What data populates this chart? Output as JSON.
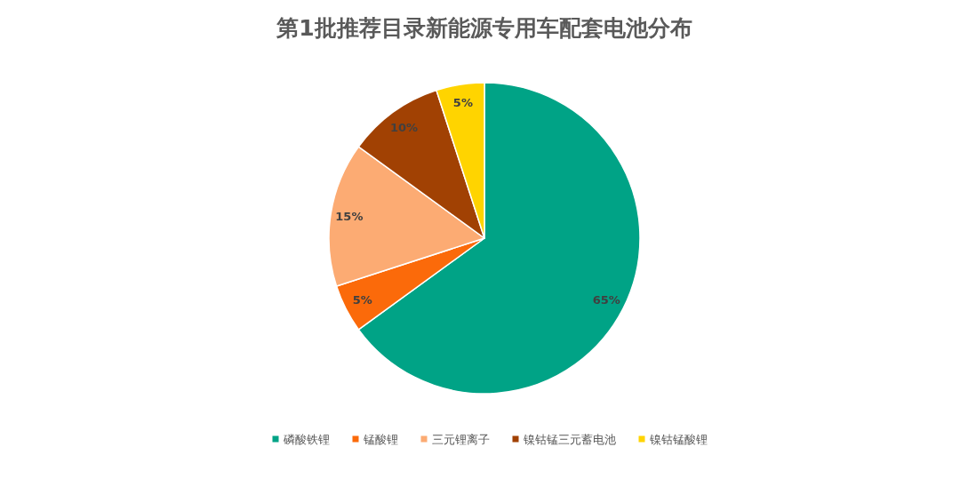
{
  "chart_data": {
    "type": "pie",
    "title": "第1批推荐目录新能源专用车配套电池分布",
    "categories": [
      "磷酸铁锂",
      "锰酸锂",
      "三元锂离子",
      "镍钴锰三元蓄电池",
      "镍钴锰酸锂"
    ],
    "values": [
      65,
      5,
      15,
      10,
      5
    ],
    "value_labels": [
      "65%",
      "5%",
      "15%",
      "10%",
      "5%"
    ],
    "colors": [
      "#00a386",
      "#fb6a0a",
      "#fcab73",
      "#a14103",
      "#ffd400"
    ],
    "legend": "bottom"
  }
}
